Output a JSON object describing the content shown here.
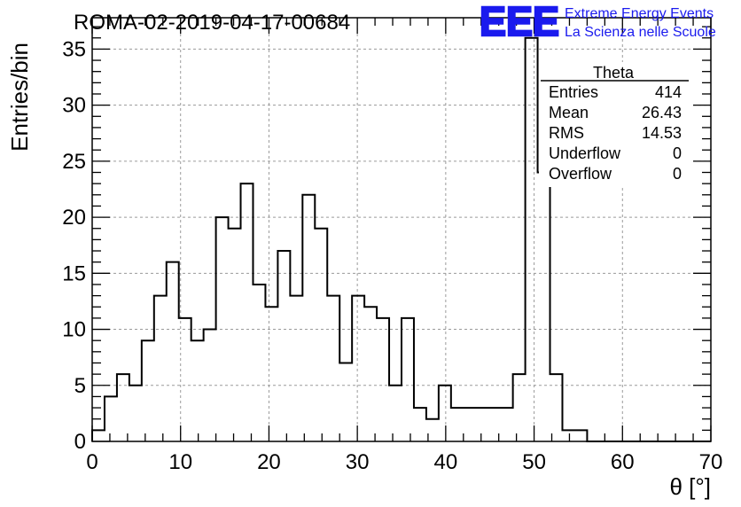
{
  "header": {
    "run_title": "ROMA-02-2019-04-17-00684",
    "logo_text": "EEE",
    "brand_line1": "Extreme Energy Events",
    "brand_line2": "La Scienza nelle Scuole",
    "brand_color": "#1a1aee"
  },
  "chart_data": {
    "type": "bar",
    "style": "step-histogram",
    "xlabel": "θ [°]",
    "ylabel": "Entries/bin",
    "xlim": [
      0,
      70
    ],
    "ylim": [
      0,
      37.8
    ],
    "bin_width": 1.4,
    "x_ticks": [
      0,
      10,
      20,
      30,
      40,
      50,
      60,
      70
    ],
    "y_ticks": [
      0,
      5,
      10,
      15,
      20,
      25,
      30,
      35
    ],
    "grid": true,
    "values": [
      1,
      4,
      6,
      5,
      9,
      13,
      16,
      11,
      9,
      10,
      20,
      19,
      23,
      14,
      12,
      17,
      13,
      22,
      19,
      13,
      7,
      13,
      12,
      11,
      5,
      11,
      3,
      2,
      5,
      3,
      3,
      3,
      3,
      3,
      6,
      36,
      24,
      6,
      1,
      1,
      0,
      0,
      0,
      0,
      0,
      0,
      0,
      0,
      0,
      0
    ],
    "stats_box": {
      "title": "Theta",
      "placement": "top-right",
      "rows": [
        {
          "label": "Entries",
          "value": "414"
        },
        {
          "label": "Mean",
          "value": "26.43"
        },
        {
          "label": "RMS",
          "value": "14.53"
        },
        {
          "label": "Underflow",
          "value": "0"
        },
        {
          "label": "Overflow",
          "value": "0"
        }
      ]
    }
  }
}
